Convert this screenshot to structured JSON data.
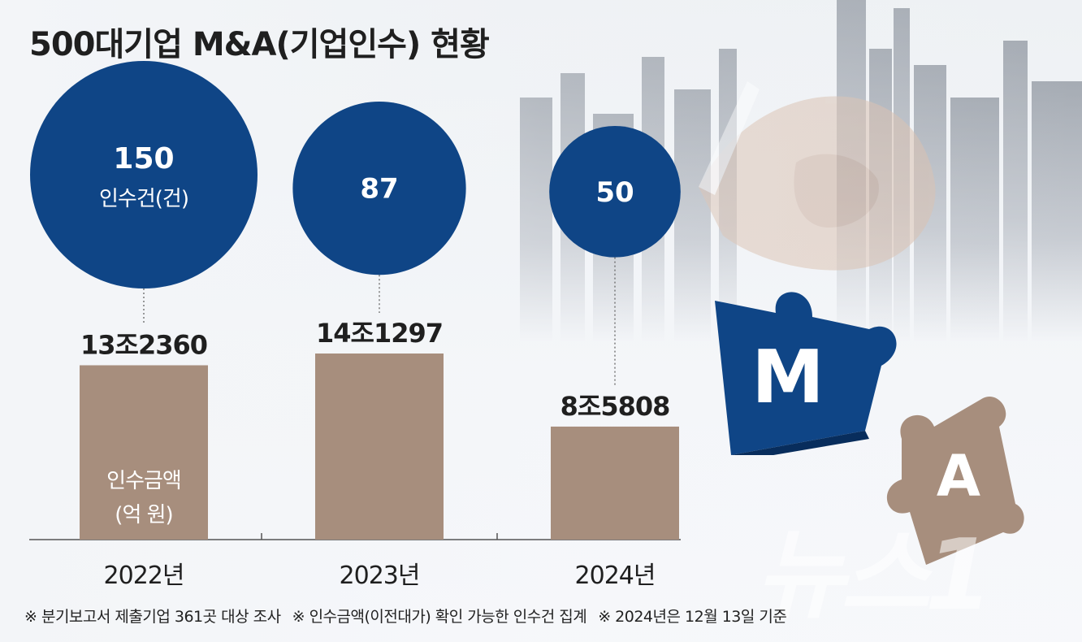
{
  "title": "500대기업 M&A(기업인수) 현황",
  "chart_data": {
    "type": "bar",
    "categories": [
      "2022년",
      "2023년",
      "2024년"
    ],
    "series": [
      {
        "name": "인수금액(억 원)",
        "values": [
          132360,
          141297,
          85808
        ],
        "labels": [
          "13조2360",
          "14조1297",
          "8조5808"
        ]
      },
      {
        "name": "인수건(건)",
        "values": [
          150,
          87,
          50
        ]
      }
    ],
    "bar_inner_label": [
      "인수금액",
      "(억 원)"
    ],
    "bubble_unit_label": "인수건(건)",
    "colors": {
      "bar": "#a78e7d",
      "bubble": "#0f4586",
      "axis": "#333333"
    }
  },
  "puzzle": {
    "m_letter": "M",
    "a_letter": "A"
  },
  "watermark": "뉴스1",
  "footnotes": [
    "※ 분기보고서 제출기업 361곳 대상 조사",
    "※ 인수금액(이전대가) 확인 가능한 인수건 집계",
    "※ 2024년은 12월 13일 기준"
  ]
}
